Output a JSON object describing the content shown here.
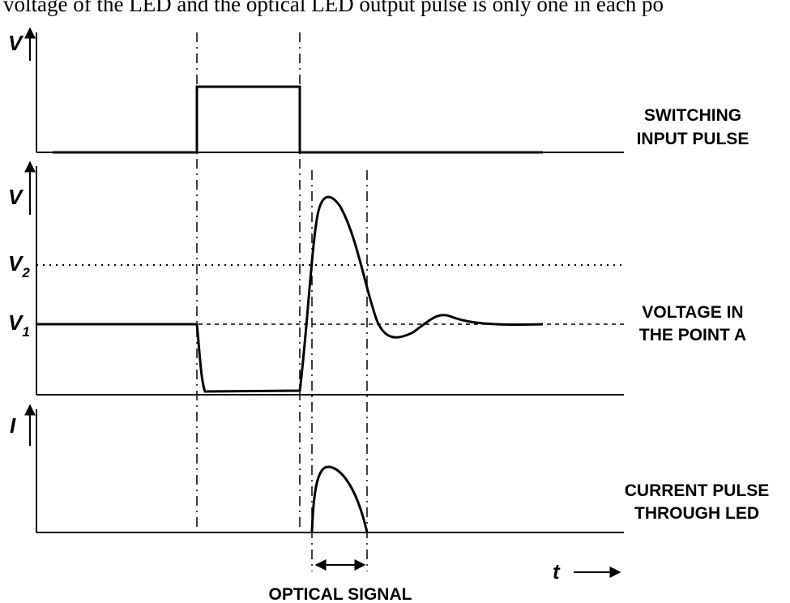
{
  "header": {
    "text": "voltage of the LED and the optical LED output pulse is only one in each po"
  },
  "panels": [
    {
      "axis_label": "V",
      "caption": [
        "SWITCHING",
        "INPUT PULSE"
      ]
    },
    {
      "axis_label": "V",
      "caption": [
        "VOLTAGE IN",
        "THE POINT  A"
      ],
      "levels": [
        {
          "label": "V",
          "subscript": "2"
        },
        {
          "label": "V",
          "subscript": "1"
        }
      ]
    },
    {
      "axis_label": "I",
      "caption": [
        "CURRENT PULSE",
        "THROUGH  LED"
      ]
    }
  ],
  "time_label": "t",
  "footer": {
    "text": "OPTICAL SIGNAL"
  }
}
